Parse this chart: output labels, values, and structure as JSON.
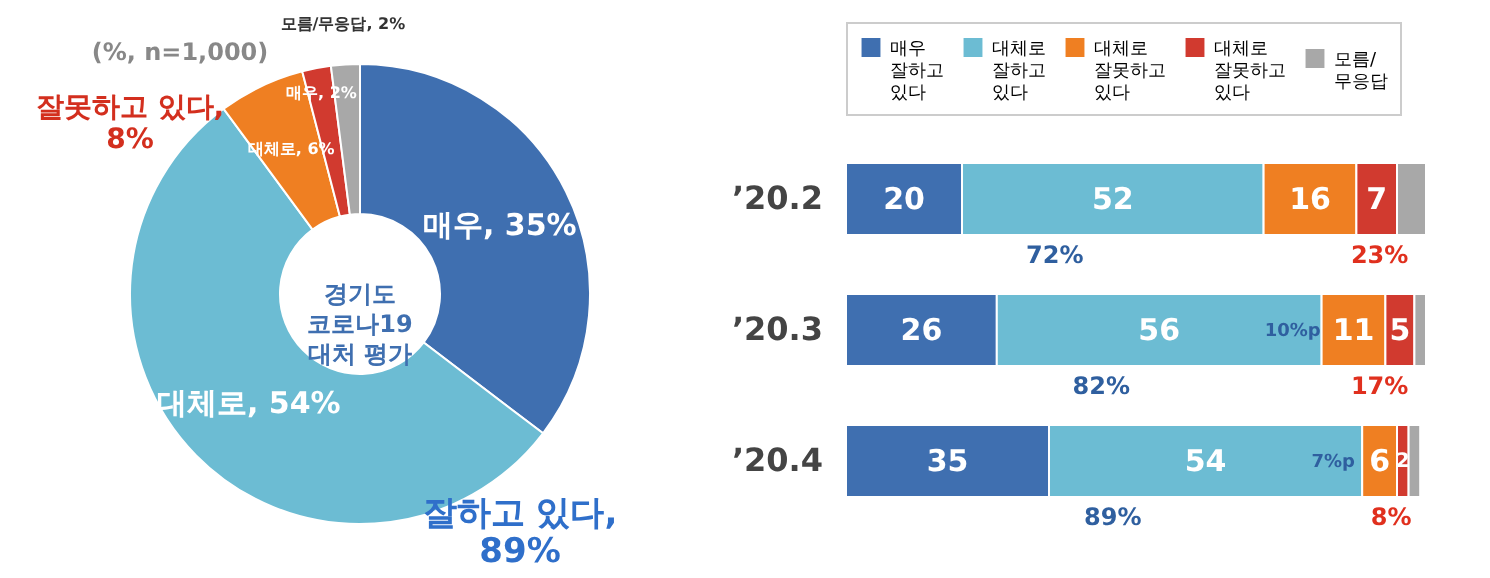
{
  "chart_data": [
    {
      "type": "donut",
      "title": "경기도\n코로나19\n대처 평가",
      "categories": [
        "매우",
        "대체로",
        "대체로",
        "매우",
        "모름/무응답"
      ],
      "values": [
        35,
        54,
        6,
        2,
        2
      ],
      "value_labels": [
        "35%",
        "54%",
        "6%",
        "2%",
        "2%"
      ],
      "colors": [
        "#3f6fb0",
        "#6cbcd3",
        "#ef7f22",
        "#d13a2f",
        "#a8a8a8"
      ],
      "annotations": [
        "(%, n=1,000)",
        "잘못하고 있다, 8%",
        "잘하고 있다, 89%"
      ]
    },
    {
      "type": "bar",
      "orientation": "horizontal",
      "stacked": true,
      "categories": [
        "’20.2",
        "’20.3",
        "’20.4"
      ],
      "legend": "top",
      "tick_labels": "y",
      "series": [
        {
          "name": "매우 잘하고 있다",
          "color": "#3f6fb0",
          "values": [
            20,
            26,
            35
          ],
          "value_labels": [
            "20",
            "26",
            "35"
          ]
        },
        {
          "name": "대체로 잘하고 있다",
          "color": "#6cbcd3",
          "values": [
            52,
            56,
            54
          ],
          "value_labels": [
            "52",
            "56",
            "54"
          ]
        },
        {
          "name": "대체로 잘못하고 있다",
          "color": "#ef7f22",
          "values": [
            16,
            11,
            6
          ],
          "value_labels": [
            "16",
            "11",
            "6"
          ]
        },
        {
          "name": "대체로 잘못하고 있다",
          "color": "#d13a2f",
          "values": [
            7,
            5,
            2
          ],
          "value_labels": [
            "7",
            "5",
            "2"
          ]
        },
        {
          "name": "모름/ 무응답",
          "color": "#a8a8a8",
          "values": [
            5,
            2,
            2
          ],
          "value_labels": [
            null,
            null,
            null
          ]
        }
      ],
      "annotations": [
        "72%",
        "23%",
        "82%",
        "17%",
        "89%",
        "8%",
        "10%p",
        "7%p"
      ]
    }
  ]
}
